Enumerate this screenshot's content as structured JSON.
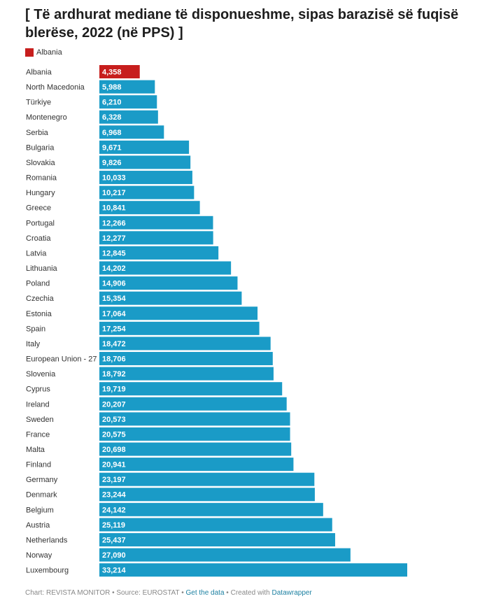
{
  "title": "[ Të ardhurat mediane të disponueshme, sipas barazisë së fuqisë blerëse, 2022 (në PPS) ]",
  "legend": {
    "label": "Albania",
    "color": "#c71e1d"
  },
  "colors": {
    "highlight": "#c71e1d",
    "default": "#1a9bc7"
  },
  "chart_data": {
    "type": "bar",
    "orientation": "horizontal",
    "title": "[ Të ardhurat mediane të disponueshme, sipas barazisë së fuqisë blerëse, 2022 (në PPS) ]",
    "xlim": [
      0,
      33214
    ],
    "grid": false,
    "legend_position": "top-left",
    "highlight": "Albania",
    "categories": [
      "Albania",
      "North Macedonia",
      "Türkiye",
      "Montenegro",
      "Serbia",
      "Bulgaria",
      "Slovakia",
      "Romania",
      "Hungary",
      "Greece",
      "Portugal",
      "Croatia",
      "Latvia",
      "Lithuania",
      "Poland",
      "Czechia",
      "Estonia",
      "Spain",
      "Italy",
      "European Union - 27",
      "Slovenia",
      "Cyprus",
      "Ireland",
      "Sweden",
      "France",
      "Malta",
      "Finland",
      "Germany",
      "Denmark",
      "Belgium",
      "Austria",
      "Netherlands",
      "Norway",
      "Luxembourg"
    ],
    "values": [
      4358,
      5988,
      6210,
      6328,
      6968,
      9671,
      9826,
      10033,
      10217,
      10841,
      12266,
      12277,
      12845,
      14202,
      14906,
      15354,
      17064,
      17254,
      18472,
      18706,
      18792,
      19719,
      20207,
      20573,
      20575,
      20698,
      20941,
      23197,
      23244,
      24142,
      25119,
      25437,
      27090,
      33214
    ],
    "labels": [
      "4,358",
      "5,988",
      "6,210",
      "6,328",
      "6,968",
      "9,671",
      "9,826",
      "10,033",
      "10,217",
      "10,841",
      "12,266",
      "12,277",
      "12,845",
      "14,202",
      "14,906",
      "15,354",
      "17,064",
      "17,254",
      "18,472",
      "18,706",
      "18,792",
      "19,719",
      "20,207",
      "20,573",
      "20,575",
      "20,698",
      "20,941",
      "23,197",
      "23,244",
      "24,142",
      "25,119",
      "25,437",
      "27,090",
      "33,214"
    ]
  },
  "footer": {
    "chart_text": "Chart: REVISTA MONITOR",
    "sep1": " • ",
    "source_text": "Source: EUROSTAT",
    "sep2": " • ",
    "get_data": "Get the data",
    "sep3": " • ",
    "created_with": "Created with ",
    "datawrapper": "Datawrapper"
  }
}
